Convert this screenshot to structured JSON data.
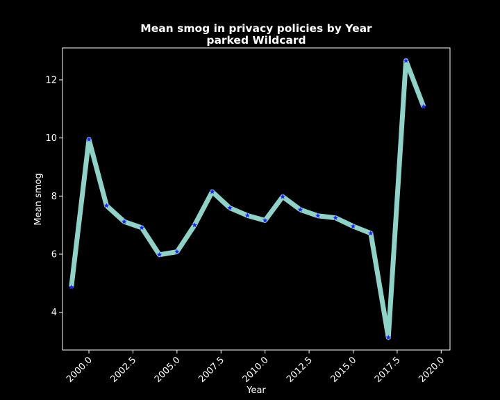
{
  "chart_data": {
    "type": "line",
    "title": "Mean smog in privacy policies by Year",
    "subtitle": "parked Wildcard",
    "xlabel": "Year",
    "ylabel": "Mean smog",
    "xlim": [
      1998.5,
      2020.5
    ],
    "ylim": [
      2.7,
      13.1
    ],
    "x_ticks": [
      2000.0,
      2002.5,
      2005.0,
      2007.5,
      2010.0,
      2012.5,
      2015.0,
      2017.5,
      2020.0
    ],
    "x_tick_labels": [
      "2000.0",
      "2002.5",
      "2005.0",
      "2007.5",
      "2010.0",
      "2012.5",
      "2015.0",
      "2017.5",
      "2020.0"
    ],
    "y_ticks": [
      4,
      6,
      8,
      10,
      12
    ],
    "y_tick_labels": [
      "4",
      "6",
      "8",
      "10",
      "12"
    ],
    "grid": false,
    "line_color": "#8dd3c7",
    "marker_color": "#1f1fff",
    "background": "#000000",
    "series": [
      {
        "x": [
          1999,
          2000,
          2001,
          2002,
          2003,
          2004,
          2005,
          2006,
          2007,
          2008,
          2009,
          2010,
          2011,
          2012,
          2013,
          2014,
          2015,
          2016,
          2017,
          2018,
          2019
        ],
        "values": [
          4.86,
          9.95,
          7.67,
          7.12,
          6.91,
          5.98,
          6.08,
          7.0,
          8.15,
          7.59,
          7.33,
          7.16,
          7.98,
          7.53,
          7.32,
          7.25,
          6.96,
          6.72,
          3.13,
          12.66,
          11.08
        ]
      }
    ]
  }
}
